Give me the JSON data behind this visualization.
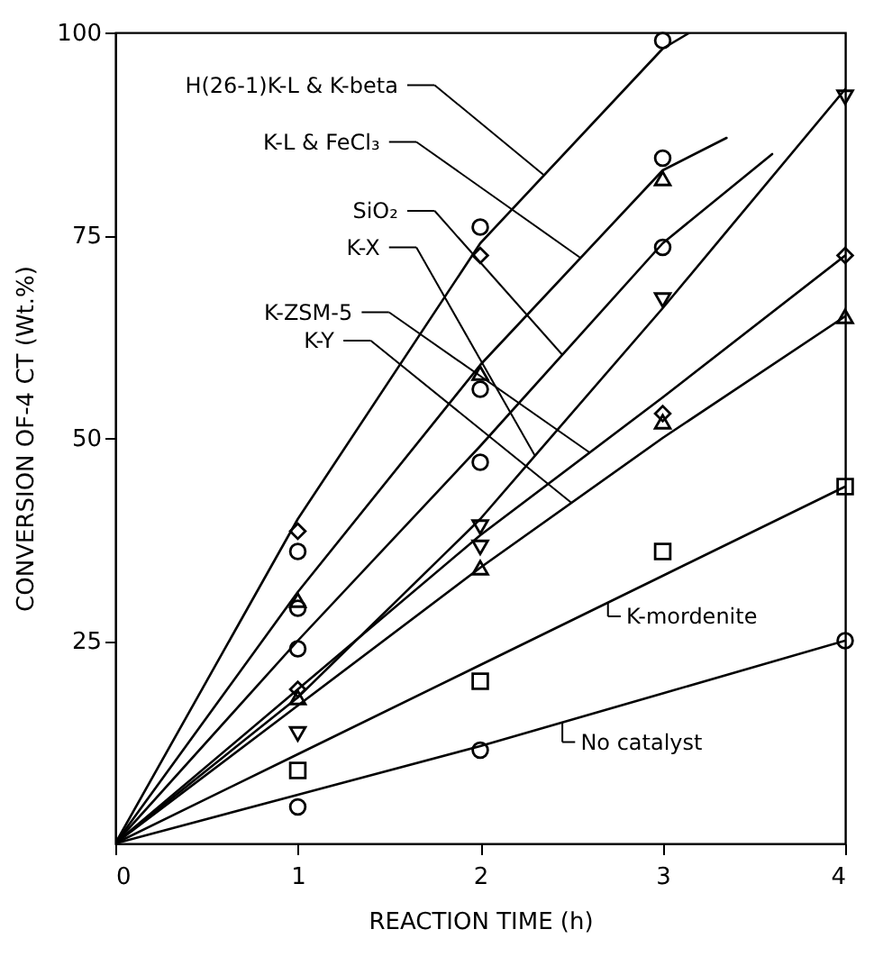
{
  "chart_data": {
    "type": "scatter",
    "xlabel": "REACTION TIME (h)",
    "ylabel": "CONVERSION OF-4 CT (Wt.%)",
    "xlim": [
      0,
      4
    ],
    "ylim": [
      0,
      100
    ],
    "xticks": [
      0,
      1,
      2,
      3,
      4
    ],
    "yticks": [
      25,
      50,
      75,
      100
    ],
    "grid": false,
    "legend": "top left",
    "series": [
      {
        "name": "H(26-1)K-L & K-beta",
        "type": "line",
        "color": "#000000",
        "x": [
          0,
          1,
          2,
          3,
          3.15
        ],
        "values": [
          0,
          40,
          74,
          98,
          100
        ]
      },
      {
        "name": "K-L & FeCl₃",
        "type": "line",
        "color": "#000000",
        "x": [
          0,
          1,
          2,
          3,
          3.35
        ],
        "values": [
          0,
          31,
          59,
          83,
          87
        ]
      },
      {
        "name": "SiO₂",
        "type": "line",
        "color": "#000000",
        "x": [
          0,
          1,
          2,
          3,
          3.6
        ],
        "values": [
          0,
          25,
          49,
          74,
          85
        ]
      },
      {
        "name": "K-X",
        "type": "line",
        "color": "#000000",
        "x": [
          0,
          1,
          2,
          3,
          4
        ],
        "values": [
          0,
          18,
          40,
          66,
          93
        ]
      },
      {
        "name": "K-ZSM-5",
        "type": "line",
        "color": "#000000",
        "x": [
          0,
          1,
          2,
          3,
          4
        ],
        "values": [
          0,
          19,
          38,
          55,
          72.5
        ]
      },
      {
        "name": "K-Y",
        "type": "line",
        "color": "#000000",
        "x": [
          0,
          1,
          2,
          3,
          4
        ],
        "values": [
          0,
          17,
          34,
          50,
          65
        ]
      },
      {
        "name": "K-mordenite",
        "type": "line",
        "color": "#000000",
        "x": [
          0,
          1,
          2,
          3,
          4
        ],
        "values": [
          0,
          11,
          22,
          33,
          44
        ]
      },
      {
        "name": "No catalyst",
        "type": "line",
        "color": "#000000",
        "x": [
          0,
          1,
          2,
          3,
          4
        ],
        "values": [
          0,
          6,
          12,
          18.5,
          25
        ]
      },
      {
        "type": "scatter",
        "marker": "diamond",
        "color": "#000000",
        "x": [
          1,
          2
        ],
        "values": [
          38.5,
          72.5
        ]
      },
      {
        "type": "scatter",
        "marker": "circle",
        "color": "#000000",
        "x": [
          1
        ],
        "values": [
          36
        ]
      },
      {
        "type": "scatter",
        "marker": "circle",
        "color": "#000000",
        "x": [
          2,
          3
        ],
        "values": [
          76,
          99
        ]
      },
      {
        "type": "scatter",
        "marker": "triangle",
        "color": "#000000",
        "x": [
          1,
          2,
          3
        ],
        "values": [
          30,
          58,
          82
        ]
      },
      {
        "type": "scatter",
        "marker": "circle",
        "color": "#000000",
        "x": [
          1,
          2,
          3
        ],
        "values": [
          29,
          56,
          84.5
        ]
      },
      {
        "type": "scatter",
        "marker": "circle",
        "color": "#000000",
        "x": [
          1,
          2,
          3
        ],
        "values": [
          24,
          47,
          73.5
        ]
      },
      {
        "type": "scatter",
        "marker": "triangle-down",
        "color": "#000000",
        "x": [
          1,
          2,
          3,
          4
        ],
        "values": [
          13.5,
          36.5,
          67,
          92
        ]
      },
      {
        "type": "scatter",
        "marker": "triangle-down",
        "color": "#000000",
        "x": [
          2
        ],
        "values": [
          39
        ]
      },
      {
        "type": "scatter",
        "marker": "diamond",
        "color": "#000000",
        "x": [
          1,
          3,
          4
        ],
        "values": [
          19,
          53,
          72.5
        ]
      },
      {
        "type": "scatter",
        "marker": "triangle",
        "color": "#000000",
        "x": [
          1,
          2,
          3,
          4
        ],
        "values": [
          18,
          34,
          52,
          65
        ]
      },
      {
        "type": "scatter",
        "marker": "square",
        "color": "#000000",
        "x": [
          1,
          2,
          3,
          4
        ],
        "values": [
          9,
          20,
          36,
          44
        ]
      },
      {
        "type": "scatter",
        "marker": "circle",
        "color": "#000000",
        "x": [
          1,
          2,
          4
        ],
        "values": [
          4.5,
          11.5,
          25
        ]
      }
    ]
  }
}
